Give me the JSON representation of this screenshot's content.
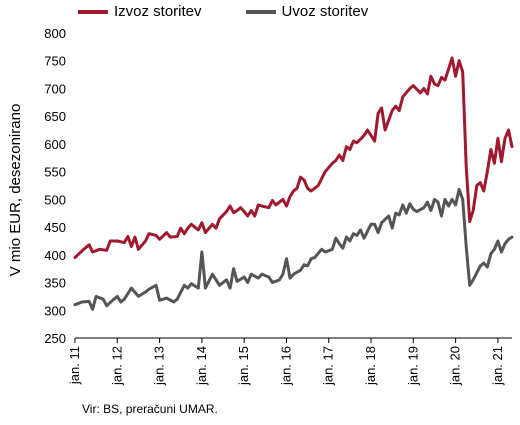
{
  "legend": {
    "series1": "Izvoz storitev",
    "series2": "Uvoz storitev"
  },
  "source": "Vir: BS, preračuni UMAR.",
  "chart_data": {
    "type": "line",
    "ylabel": "V mio EUR, desezonirano",
    "ylim": [
      250,
      800
    ],
    "yticks": [
      250,
      300,
      350,
      400,
      450,
      500,
      550,
      600,
      650,
      700,
      750,
      800
    ],
    "xlim": [
      "2011-01",
      "2021-05"
    ],
    "xtick_labels": [
      "jan. 11",
      "jan. 12",
      "jan. 13",
      "jan. 14",
      "jan. 15",
      "jan. 16",
      "jan. 17",
      "jan. 18",
      "jan. 19",
      "jan. 20",
      "jan. 21"
    ],
    "grid": false,
    "legend_position": "top",
    "series": [
      {
        "name": "Izvoz storitev",
        "color": "#A0192E",
        "points": [
          [
            "2011-01",
            395
          ],
          [
            "2011-03",
            407
          ],
          [
            "2011-05",
            418
          ],
          [
            "2011-06",
            405
          ],
          [
            "2011-08",
            410
          ],
          [
            "2011-10",
            408
          ],
          [
            "2011-11",
            425
          ],
          [
            "2012-01",
            425
          ],
          [
            "2012-03",
            422
          ],
          [
            "2012-04",
            433
          ],
          [
            "2012-05",
            415
          ],
          [
            "2012-06",
            432
          ],
          [
            "2012-07",
            410
          ],
          [
            "2012-09",
            425
          ],
          [
            "2012-10",
            438
          ],
          [
            "2012-12",
            435
          ],
          [
            "2013-01",
            428
          ],
          [
            "2013-03",
            440
          ],
          [
            "2013-04",
            432
          ],
          [
            "2013-06",
            433
          ],
          [
            "2013-07",
            448
          ],
          [
            "2013-08",
            438
          ],
          [
            "2013-09",
            448
          ],
          [
            "2013-10",
            455
          ],
          [
            "2013-12",
            445
          ],
          [
            "2014-01",
            458
          ],
          [
            "2014-02",
            440
          ],
          [
            "2014-04",
            455
          ],
          [
            "2014-05",
            448
          ],
          [
            "2014-06",
            465
          ],
          [
            "2014-08",
            478
          ],
          [
            "2014-09",
            488
          ],
          [
            "2014-10",
            476
          ],
          [
            "2014-11",
            480
          ],
          [
            "2014-12",
            485
          ],
          [
            "2015-01",
            478
          ],
          [
            "2015-02",
            470
          ],
          [
            "2015-03",
            480
          ],
          [
            "2015-04",
            470
          ],
          [
            "2015-05",
            490
          ],
          [
            "2015-06",
            488
          ],
          [
            "2015-08",
            485
          ],
          [
            "2015-09",
            498
          ],
          [
            "2015-10",
            490
          ],
          [
            "2015-12",
            500
          ],
          [
            "2016-01",
            488
          ],
          [
            "2016-02",
            505
          ],
          [
            "2016-03",
            515
          ],
          [
            "2016-04",
            520
          ],
          [
            "2016-05",
            540
          ],
          [
            "2016-06",
            535
          ],
          [
            "2016-07",
            520
          ],
          [
            "2016-08",
            515
          ],
          [
            "2016-10",
            525
          ],
          [
            "2016-12",
            550
          ],
          [
            "2017-02",
            565
          ],
          [
            "2017-03",
            570
          ],
          [
            "2017-04",
            580
          ],
          [
            "2017-05",
            570
          ],
          [
            "2017-06",
            595
          ],
          [
            "2017-07",
            590
          ],
          [
            "2017-08",
            605
          ],
          [
            "2017-09",
            602
          ],
          [
            "2017-11",
            615
          ],
          [
            "2017-12",
            625
          ],
          [
            "2018-02",
            605
          ],
          [
            "2018-03",
            655
          ],
          [
            "2018-04",
            665
          ],
          [
            "2018-05",
            625
          ],
          [
            "2018-07",
            660
          ],
          [
            "2018-08",
            668
          ],
          [
            "2018-09",
            660
          ],
          [
            "2018-10",
            685
          ],
          [
            "2018-12",
            700
          ],
          [
            "2019-01",
            705
          ],
          [
            "2019-03",
            692
          ],
          [
            "2019-04",
            700
          ],
          [
            "2019-05",
            690
          ],
          [
            "2019-06",
            722
          ],
          [
            "2019-07",
            708
          ],
          [
            "2019-08",
            705
          ],
          [
            "2019-09",
            720
          ],
          [
            "2019-10",
            715
          ],
          [
            "2019-12",
            755
          ],
          [
            "2020-01",
            722
          ],
          [
            "2020-02",
            750
          ],
          [
            "2020-03",
            730
          ],
          [
            "2020-04",
            560
          ],
          [
            "2020-05",
            460
          ],
          [
            "2020-06",
            480
          ],
          [
            "2020-07",
            525
          ],
          [
            "2020-08",
            530
          ],
          [
            "2020-09",
            515
          ],
          [
            "2020-10",
            550
          ],
          [
            "2020-11",
            590
          ],
          [
            "2020-12",
            565
          ],
          [
            "2021-01",
            610
          ],
          [
            "2021-02",
            568
          ],
          [
            "2021-03",
            610
          ],
          [
            "2021-04",
            625
          ],
          [
            "2021-05",
            595
          ]
        ]
      },
      {
        "name": "Uvoz storitev",
        "color": "#555555",
        "points": [
          [
            "2011-01",
            310
          ],
          [
            "2011-03",
            315
          ],
          [
            "2011-05",
            316
          ],
          [
            "2011-06",
            302
          ],
          [
            "2011-07",
            325
          ],
          [
            "2011-09",
            320
          ],
          [
            "2011-10",
            308
          ],
          [
            "2011-12",
            320
          ],
          [
            "2012-01",
            325
          ],
          [
            "2012-02",
            315
          ],
          [
            "2012-03",
            320
          ],
          [
            "2012-05",
            340
          ],
          [
            "2012-07",
            325
          ],
          [
            "2012-09",
            333
          ],
          [
            "2012-10",
            338
          ],
          [
            "2012-12",
            345
          ],
          [
            "2013-01",
            318
          ],
          [
            "2013-03",
            322
          ],
          [
            "2013-05",
            315
          ],
          [
            "2013-06",
            320
          ],
          [
            "2013-08",
            345
          ],
          [
            "2013-09",
            340
          ],
          [
            "2013-10",
            348
          ],
          [
            "2013-12",
            340
          ],
          [
            "2014-01",
            405
          ],
          [
            "2014-02",
            340
          ],
          [
            "2014-04",
            365
          ],
          [
            "2014-05",
            355
          ],
          [
            "2014-06",
            345
          ],
          [
            "2014-08",
            355
          ],
          [
            "2014-09",
            340
          ],
          [
            "2014-10",
            375
          ],
          [
            "2014-11",
            352
          ],
          [
            "2015-01",
            360
          ],
          [
            "2015-02",
            350
          ],
          [
            "2015-03",
            365
          ],
          [
            "2015-05",
            358
          ],
          [
            "2015-06",
            365
          ],
          [
            "2015-08",
            360
          ],
          [
            "2015-09",
            350
          ],
          [
            "2015-11",
            355
          ],
          [
            "2015-12",
            365
          ],
          [
            "2016-01",
            393
          ],
          [
            "2016-02",
            358
          ],
          [
            "2016-03",
            365
          ],
          [
            "2016-05",
            372
          ],
          [
            "2016-06",
            382
          ],
          [
            "2016-07",
            380
          ],
          [
            "2016-08",
            393
          ],
          [
            "2016-09",
            395
          ],
          [
            "2016-11",
            410
          ],
          [
            "2016-12",
            405
          ],
          [
            "2017-02",
            410
          ],
          [
            "2017-03",
            430
          ],
          [
            "2017-04",
            420
          ],
          [
            "2017-05",
            412
          ],
          [
            "2017-06",
            432
          ],
          [
            "2017-07",
            425
          ],
          [
            "2017-08",
            438
          ],
          [
            "2017-09",
            435
          ],
          [
            "2017-10",
            445
          ],
          [
            "2017-11",
            430
          ],
          [
            "2018-01",
            455
          ],
          [
            "2018-02",
            455
          ],
          [
            "2018-03",
            440
          ],
          [
            "2018-04",
            458
          ],
          [
            "2018-06",
            470
          ],
          [
            "2018-07",
            448
          ],
          [
            "2018-08",
            475
          ],
          [
            "2018-09",
            472
          ],
          [
            "2018-10",
            490
          ],
          [
            "2018-11",
            475
          ],
          [
            "2018-12",
            492
          ],
          [
            "2019-01",
            482
          ],
          [
            "2019-02",
            478
          ],
          [
            "2019-04",
            485
          ],
          [
            "2019-05",
            495
          ],
          [
            "2019-06",
            480
          ],
          [
            "2019-07",
            500
          ],
          [
            "2019-08",
            495
          ],
          [
            "2019-09",
            470
          ],
          [
            "2019-10",
            500
          ],
          [
            "2019-11",
            488
          ],
          [
            "2019-12",
            500
          ],
          [
            "2020-01",
            490
          ],
          [
            "2020-02",
            518
          ],
          [
            "2020-03",
            500
          ],
          [
            "2020-04",
            415
          ],
          [
            "2020-05",
            345
          ],
          [
            "2020-06",
            355
          ],
          [
            "2020-08",
            380
          ],
          [
            "2020-09",
            385
          ],
          [
            "2020-10",
            378
          ],
          [
            "2020-11",
            402
          ],
          [
            "2020-12",
            410
          ],
          [
            "2021-01",
            425
          ],
          [
            "2021-02",
            405
          ],
          [
            "2021-03",
            420
          ],
          [
            "2021-04",
            428
          ],
          [
            "2021-05",
            432
          ]
        ]
      }
    ]
  }
}
